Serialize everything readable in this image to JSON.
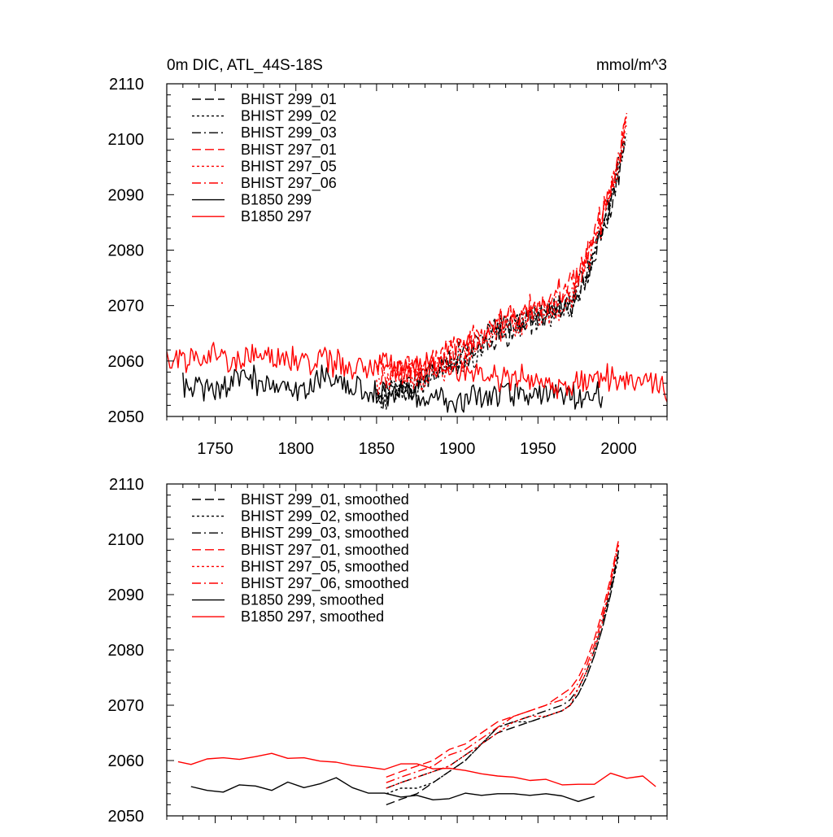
{
  "figure": {
    "title": "0m DIC, ATL_44S-18S",
    "units": "mmol/m^3"
  },
  "chart_data": [
    {
      "type": "line",
      "title": "0m DIC, ATL_44S-18S",
      "units_label": "mmol/m^3",
      "xlim": [
        1720,
        2030
      ],
      "ylim": [
        2050,
        2110
      ],
      "xticks": [
        1750,
        1800,
        1850,
        1900,
        1950,
        2000
      ],
      "yticks": [
        2050,
        2060,
        2070,
        2080,
        2090,
        2100,
        2110
      ],
      "xtick_labels": [
        "1750",
        "1800",
        "1850",
        "1900",
        "1950",
        "2000"
      ],
      "ytick_labels": [
        "2050",
        "2060",
        "2070",
        "2080",
        "2090",
        "2100",
        "2110"
      ],
      "legend_position": "top-left",
      "series": [
        {
          "name": "BHIST 299_01",
          "color": "#000000",
          "dash": "dash",
          "x": [
            1850,
            1860,
            1870,
            1880,
            1890,
            1900,
            1910,
            1920,
            1930,
            1940,
            1950,
            1960,
            1970,
            1975,
            1980,
            1985,
            1990,
            1995,
            2000,
            2005
          ],
          "y": [
            2053,
            2054,
            2055,
            2057,
            2059,
            2060,
            2062,
            2064,
            2065,
            2066,
            2067,
            2069,
            2070,
            2072,
            2075,
            2079,
            2083,
            2088,
            2094,
            2101
          ]
        },
        {
          "name": "BHIST 299_02",
          "color": "#000000",
          "dash": "dot",
          "x": [
            1850,
            1860,
            1870,
            1880,
            1890,
            1900,
            1910,
            1920,
            1930,
            1940,
            1950,
            1960,
            1970,
            1975,
            1980,
            1985,
            1990,
            1995,
            2000,
            2005
          ],
          "y": [
            2052,
            2054,
            2055,
            2056,
            2058,
            2059,
            2061,
            2064,
            2066,
            2067,
            2068,
            2069,
            2070,
            2072,
            2075,
            2079,
            2083,
            2088,
            2095,
            2101
          ]
        },
        {
          "name": "BHIST 299_03",
          "color": "#000000",
          "dash": "dashdot",
          "x": [
            1850,
            1860,
            1870,
            1880,
            1890,
            1900,
            1910,
            1920,
            1930,
            1940,
            1950,
            1960,
            1970,
            1975,
            1980,
            1985,
            1990,
            1995,
            2000,
            2005
          ],
          "y": [
            2054,
            2055,
            2056,
            2057,
            2059,
            2061,
            2063,
            2065,
            2066,
            2067,
            2068,
            2070,
            2071,
            2073,
            2076,
            2080,
            2084,
            2089,
            2095,
            2101
          ]
        },
        {
          "name": "BHIST 297_01",
          "color": "#ff0000",
          "dash": "dash",
          "x": [
            1850,
            1860,
            1870,
            1880,
            1890,
            1900,
            1910,
            1920,
            1930,
            1940,
            1950,
            1960,
            1970,
            1975,
            1980,
            1985,
            1990,
            1995,
            2000,
            2005
          ],
          "y": [
            2058,
            2058,
            2059,
            2059,
            2061,
            2063,
            2064,
            2066,
            2068,
            2069,
            2070,
            2072,
            2074,
            2076,
            2079,
            2083,
            2087,
            2091,
            2097,
            2104
          ]
        },
        {
          "name": "BHIST 297_05",
          "color": "#ff0000",
          "dash": "dot",
          "x": [
            1850,
            1860,
            1870,
            1880,
            1890,
            1900,
            1910,
            1920,
            1930,
            1940,
            1950,
            1960,
            1970,
            1975,
            1980,
            1985,
            1990,
            1995,
            2000,
            2005
          ],
          "y": [
            2056,
            2056,
            2057,
            2057,
            2059,
            2060,
            2062,
            2064,
            2066,
            2067,
            2068,
            2069,
            2071,
            2074,
            2077,
            2081,
            2085,
            2090,
            2096,
            2103
          ]
        },
        {
          "name": "BHIST 297_06",
          "color": "#ff0000",
          "dash": "dashdot",
          "x": [
            1850,
            1860,
            1870,
            1880,
            1890,
            1900,
            1910,
            1920,
            1930,
            1940,
            1950,
            1960,
            1970,
            1975,
            1980,
            1985,
            1990,
            1995,
            2000,
            2005
          ],
          "y": [
            2057,
            2057,
            2058,
            2058,
            2060,
            2062,
            2063,
            2065,
            2067,
            2068,
            2069,
            2071,
            2073,
            2075,
            2078,
            2082,
            2086,
            2091,
            2096,
            2103
          ]
        },
        {
          "name": "B1850 299",
          "color": "#000000",
          "dash": "solid",
          "x": [
            1730,
            1740,
            1750,
            1760,
            1770,
            1780,
            1790,
            1800,
            1810,
            1820,
            1830,
            1840,
            1850,
            1860,
            1870,
            1880,
            1890,
            1900,
            1910,
            1920,
            1930,
            1940,
            1950,
            1960,
            1970,
            1980,
            1990
          ],
          "y": [
            2056,
            2055,
            2055,
            2056,
            2057,
            2056,
            2055,
            2055,
            2056,
            2057,
            2056,
            2055,
            2054,
            2054,
            2054,
            2053,
            2053,
            2053,
            2054,
            2054,
            2054,
            2054,
            2054,
            2054,
            2054,
            2053,
            2054
          ]
        },
        {
          "name": "B1850 297",
          "color": "#ff0000",
          "dash": "solid",
          "x": [
            1720,
            1730,
            1740,
            1750,
            1760,
            1770,
            1780,
            1790,
            1800,
            1810,
            1820,
            1830,
            1840,
            1850,
            1860,
            1870,
            1880,
            1890,
            1900,
            1910,
            1920,
            1930,
            1940,
            1950,
            1960,
            1970,
            1980,
            1990,
            2000,
            2010,
            2020,
            2030
          ],
          "y": [
            2060,
            2060,
            2061,
            2061,
            2060,
            2061,
            2061,
            2061,
            2060,
            2060,
            2060,
            2059,
            2059,
            2059,
            2059,
            2059,
            2059,
            2059,
            2058,
            2058,
            2057,
            2057,
            2057,
            2056,
            2056,
            2056,
            2056,
            2057,
            2057,
            2057,
            2057,
            2054
          ]
        }
      ]
    },
    {
      "type": "line",
      "title": "",
      "xlim": [
        1720,
        2030
      ],
      "ylim": [
        2050,
        2110
      ],
      "xticks": [
        1750,
        1800,
        1850,
        1900,
        1950,
        2000
      ],
      "yticks": [
        2050,
        2060,
        2070,
        2080,
        2090,
        2100,
        2110
      ],
      "xtick_labels": [],
      "ytick_labels": [
        "2050",
        "2060",
        "2070",
        "2080",
        "2090",
        "2100",
        "2110"
      ],
      "legend_position": "top-left",
      "series": [
        {
          "name": "BHIST 299_01, smoothed",
          "color": "#000000",
          "dash": "dash",
          "x": [
            1856,
            1865,
            1875,
            1885,
            1895,
            1905,
            1915,
            1925,
            1935,
            1945,
            1955,
            1965,
            1970,
            1975,
            1980,
            1985,
            1990,
            1995,
            2000
          ],
          "y": [
            2052,
            2053,
            2054,
            2056,
            2058,
            2060,
            2063,
            2065,
            2066,
            2067,
            2068,
            2069,
            2070,
            2072,
            2075,
            2079,
            2084,
            2090,
            2098
          ]
        },
        {
          "name": "BHIST 299_02, smoothed",
          "color": "#000000",
          "dash": "dot",
          "x": [
            1856,
            1865,
            1875,
            1885,
            1895,
            1905,
            1915,
            1925,
            1935,
            1945,
            1955,
            1965,
            1970,
            1975,
            1980,
            1985,
            1990,
            1995,
            2000
          ],
          "y": [
            2054,
            2055,
            2055,
            2056,
            2058,
            2060,
            2063,
            2066,
            2067,
            2067,
            2068,
            2069,
            2070,
            2072,
            2075,
            2079,
            2084,
            2090,
            2097
          ]
        },
        {
          "name": "BHIST 299_03, smoothed",
          "color": "#000000",
          "dash": "dashdot",
          "x": [
            1856,
            1865,
            1875,
            1885,
            1895,
            1905,
            1915,
            1925,
            1935,
            1945,
            1955,
            1965,
            1970,
            1975,
            1980,
            1985,
            1990,
            1995,
            2000
          ],
          "y": [
            2055,
            2056,
            2057,
            2058,
            2059,
            2061,
            2063,
            2066,
            2067,
            2068,
            2069,
            2070,
            2071,
            2073,
            2076,
            2080,
            2085,
            2091,
            2098
          ]
        },
        {
          "name": "BHIST 297_01, smoothed",
          "color": "#ff0000",
          "dash": "dash",
          "x": [
            1856,
            1865,
            1875,
            1885,
            1895,
            1905,
            1915,
            1925,
            1935,
            1945,
            1955,
            1965,
            1970,
            1975,
            1980,
            1985,
            1990,
            1995,
            2000
          ],
          "y": [
            2057,
            2058,
            2059,
            2060,
            2062,
            2063,
            2065,
            2067,
            2068,
            2069,
            2070,
            2072,
            2073,
            2075,
            2078,
            2082,
            2087,
            2093,
            2100
          ]
        },
        {
          "name": "BHIST 297_05, smoothed",
          "color": "#ff0000",
          "dash": "dot",
          "x": [
            1856,
            1865,
            1875,
            1885,
            1895,
            1905,
            1915,
            1925,
            1935,
            1945,
            1955,
            1965,
            1970,
            1975,
            1980,
            1985,
            1990,
            1995,
            2000
          ],
          "y": [
            2055,
            2056,
            2057,
            2058,
            2059,
            2061,
            2063,
            2065,
            2067,
            2068,
            2068,
            2069,
            2070,
            2073,
            2076,
            2080,
            2085,
            2092,
            2099
          ]
        },
        {
          "name": "BHIST 297_06, smoothed",
          "color": "#ff0000",
          "dash": "dashdot",
          "x": [
            1856,
            1865,
            1875,
            1885,
            1895,
            1905,
            1915,
            1925,
            1935,
            1945,
            1955,
            1965,
            1970,
            1975,
            1980,
            1985,
            1990,
            1995,
            2000
          ],
          "y": [
            2056,
            2057,
            2058,
            2059,
            2061,
            2062,
            2064,
            2066,
            2068,
            2069,
            2070,
            2071,
            2072,
            2074,
            2077,
            2081,
            2086,
            2092,
            2100
          ]
        },
        {
          "name": "B1850 299, smoothed",
          "color": "#000000",
          "dash": "solid",
          "x": [
            1735,
            1745,
            1755,
            1765,
            1775,
            1785,
            1795,
            1805,
            1815,
            1825,
            1835,
            1845,
            1855,
            1865,
            1875,
            1885,
            1895,
            1905,
            1915,
            1925,
            1935,
            1945,
            1955,
            1965,
            1975,
            1985
          ],
          "y": [
            2055.3,
            2054.6,
            2054.3,
            2055.6,
            2055.4,
            2054.6,
            2056.1,
            2055.1,
            2055.8,
            2056.9,
            2055.1,
            2054.1,
            2054.1,
            2053.4,
            2053.7,
            2052.9,
            2053.1,
            2054.1,
            2053.7,
            2054.0,
            2054.0,
            2053.7,
            2054.0,
            2053.6,
            2052.6,
            2053.5
          ]
        },
        {
          "name": "B1850 297, smoothed",
          "color": "#ff0000",
          "dash": "solid",
          "x": [
            1727,
            1735,
            1745,
            1755,
            1765,
            1775,
            1785,
            1795,
            1805,
            1815,
            1825,
            1835,
            1845,
            1855,
            1865,
            1875,
            1885,
            1895,
            1905,
            1915,
            1925,
            1935,
            1945,
            1955,
            1965,
            1975,
            1985,
            1995,
            2005,
            2015,
            2023
          ],
          "y": [
            2059.8,
            2059.3,
            2060.3,
            2060.5,
            2060.2,
            2060.7,
            2061.3,
            2060.4,
            2060.5,
            2059.9,
            2059.7,
            2059.1,
            2058.8,
            2058.4,
            2059.4,
            2059.4,
            2058.5,
            2058.6,
            2058.2,
            2057.6,
            2057.2,
            2057.0,
            2056.4,
            2056.6,
            2055.6,
            2055.7,
            2055.7,
            2057.7,
            2056.8,
            2057.2,
            2055.3
          ]
        }
      ]
    }
  ]
}
